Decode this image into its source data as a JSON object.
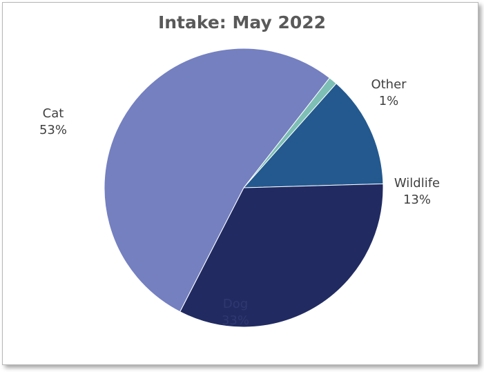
{
  "chart_data": {
    "type": "pie",
    "title": "Intake: May 2022",
    "slices": [
      {
        "label": "Other",
        "value": 1,
        "display": "1%",
        "color": "#7dbfb5"
      },
      {
        "label": "Wildlife",
        "value": 13,
        "display": "13%",
        "color": "#23598f"
      },
      {
        "label": "Dog",
        "value": 33,
        "display": "33%",
        "color": "#212b62"
      },
      {
        "label": "Cat",
        "value": 53,
        "display": "53%",
        "color": "#7480c0"
      }
    ]
  }
}
